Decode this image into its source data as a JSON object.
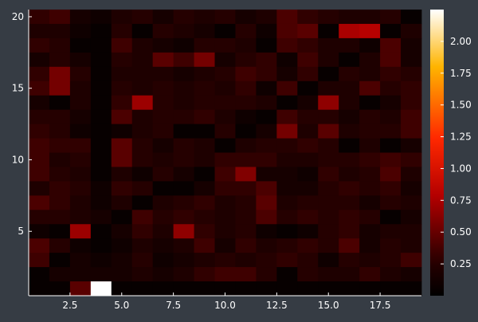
{
  "chart_data": {
    "type": "heatmap",
    "title": "",
    "xlabel": "",
    "ylabel": "",
    "x_range": [
      0.5,
      19.5
    ],
    "y_range": [
      0.5,
      20.5
    ],
    "x_ticks": [
      {
        "value": 2.5,
        "label": "2.5"
      },
      {
        "value": 5.0,
        "label": "5.0"
      },
      {
        "value": 7.5,
        "label": "7.5"
      },
      {
        "value": 10.0,
        "label": "10.0"
      },
      {
        "value": 12.5,
        "label": "12.5"
      },
      {
        "value": 15.0,
        "label": "15.0"
      },
      {
        "value": 17.5,
        "label": "17.5"
      }
    ],
    "y_ticks": [
      {
        "value": 5,
        "label": "5"
      },
      {
        "value": 10,
        "label": "10"
      },
      {
        "value": 15,
        "label": "15"
      },
      {
        "value": 20,
        "label": "20"
      }
    ],
    "colormap": "heat",
    "background_color": "#363c44",
    "colorbar": {
      "range": [
        0.0,
        2.25
      ],
      "ticks": [
        {
          "value": 0.25,
          "label": "0.25"
        },
        {
          "value": 0.5,
          "label": "0.50"
        },
        {
          "value": 0.75,
          "label": "0.75"
        },
        {
          "value": 1.0,
          "label": "1.00"
        },
        {
          "value": 1.25,
          "label": "1.25"
        },
        {
          "value": 1.5,
          "label": "1.50"
        },
        {
          "value": 1.75,
          "label": "1.75"
        },
        {
          "value": 2.0,
          "label": "2.00"
        }
      ]
    },
    "values_note": "rows from top (y=20) to bottom (y=1), columns x=1..19",
    "z": [
      [
        0.3,
        0.35,
        0.15,
        0.1,
        0.2,
        0.25,
        0.15,
        0.25,
        0.2,
        0.25,
        0.15,
        0.2,
        0.4,
        0.3,
        0.25,
        0.2,
        0.2,
        0.25,
        0.05
      ],
      [
        0.2,
        0.2,
        0.1,
        0.05,
        0.25,
        0.05,
        0.25,
        0.2,
        0.15,
        0.05,
        0.25,
        0.1,
        0.4,
        0.45,
        0.05,
        0.75,
        0.8,
        0.05,
        0.2
      ],
      [
        0.3,
        0.25,
        0.05,
        0.05,
        0.35,
        0.2,
        0.15,
        0.1,
        0.25,
        0.25,
        0.2,
        0.05,
        0.35,
        0.3,
        0.2,
        0.2,
        0.1,
        0.4,
        0.15
      ],
      [
        0.15,
        0.25,
        0.15,
        0.05,
        0.25,
        0.2,
        0.45,
        0.35,
        0.55,
        0.15,
        0.25,
        0.3,
        0.1,
        0.35,
        0.2,
        0.05,
        0.2,
        0.4,
        0.15
      ],
      [
        0.3,
        0.55,
        0.25,
        0.05,
        0.2,
        0.2,
        0.2,
        0.15,
        0.2,
        0.25,
        0.35,
        0.3,
        0.15,
        0.3,
        0.05,
        0.25,
        0.2,
        0.3,
        0.25
      ],
      [
        0.35,
        0.55,
        0.2,
        0.05,
        0.25,
        0.2,
        0.25,
        0.2,
        0.25,
        0.2,
        0.3,
        0.1,
        0.35,
        0.05,
        0.2,
        0.2,
        0.4,
        0.25,
        0.3
      ],
      [
        0.15,
        0.05,
        0.2,
        0.05,
        0.3,
        0.7,
        0.25,
        0.2,
        0.25,
        0.25,
        0.25,
        0.2,
        0.05,
        0.15,
        0.65,
        0.2,
        0.05,
        0.15,
        0.3
      ],
      [
        0.25,
        0.25,
        0.15,
        0.05,
        0.4,
        0.2,
        0.25,
        0.25,
        0.3,
        0.2,
        0.1,
        0.05,
        0.35,
        0.25,
        0.25,
        0.15,
        0.25,
        0.2,
        0.35
      ],
      [
        0.3,
        0.25,
        0.1,
        0.05,
        0.1,
        0.2,
        0.25,
        0.05,
        0.05,
        0.25,
        0.05,
        0.15,
        0.55,
        0.2,
        0.45,
        0.2,
        0.25,
        0.25,
        0.35
      ],
      [
        0.35,
        0.3,
        0.3,
        0.05,
        0.45,
        0.25,
        0.15,
        0.25,
        0.2,
        0.05,
        0.2,
        0.25,
        0.25,
        0.3,
        0.25,
        0.05,
        0.2,
        0.05,
        0.15
      ],
      [
        0.35,
        0.2,
        0.25,
        0.05,
        0.45,
        0.25,
        0.2,
        0.25,
        0.2,
        0.3,
        0.3,
        0.3,
        0.2,
        0.2,
        0.25,
        0.25,
        0.3,
        0.35,
        0.3
      ],
      [
        0.35,
        0.25,
        0.2,
        0.05,
        0.2,
        0.1,
        0.25,
        0.15,
        0.05,
        0.35,
        0.6,
        0.15,
        0.15,
        0.1,
        0.3,
        0.2,
        0.25,
        0.4,
        0.2
      ],
      [
        0.2,
        0.3,
        0.25,
        0.1,
        0.3,
        0.25,
        0.05,
        0.05,
        0.15,
        0.3,
        0.3,
        0.4,
        0.15,
        0.15,
        0.25,
        0.3,
        0.25,
        0.3,
        0.15
      ],
      [
        0.4,
        0.3,
        0.2,
        0.1,
        0.2,
        0.05,
        0.2,
        0.25,
        0.3,
        0.2,
        0.25,
        0.45,
        0.2,
        0.25,
        0.25,
        0.25,
        0.15,
        0.25,
        0.2
      ],
      [
        0.25,
        0.25,
        0.2,
        0.15,
        0.05,
        0.35,
        0.25,
        0.3,
        0.25,
        0.2,
        0.25,
        0.4,
        0.25,
        0.3,
        0.25,
        0.3,
        0.25,
        0.05,
        0.15
      ],
      [
        0.1,
        0.05,
        0.7,
        0.05,
        0.15,
        0.3,
        0.2,
        0.65,
        0.3,
        0.2,
        0.25,
        0.1,
        0.05,
        0.1,
        0.25,
        0.3,
        0.15,
        0.2,
        0.2
      ],
      [
        0.4,
        0.25,
        0.1,
        0.05,
        0.1,
        0.2,
        0.15,
        0.2,
        0.35,
        0.15,
        0.3,
        0.2,
        0.25,
        0.3,
        0.25,
        0.4,
        0.15,
        0.25,
        0.2
      ],
      [
        0.35,
        0.05,
        0.15,
        0.1,
        0.15,
        0.25,
        0.1,
        0.15,
        0.2,
        0.25,
        0.2,
        0.25,
        0.3,
        0.25,
        0.1,
        0.25,
        0.2,
        0.25,
        0.35
      ],
      [
        0.05,
        0.15,
        0.15,
        0.15,
        0.15,
        0.2,
        0.15,
        0.2,
        0.3,
        0.35,
        0.35,
        0.25,
        0.05,
        0.25,
        0.2,
        0.2,
        0.3,
        0.2,
        0.15
      ],
      [
        0.05,
        0.05,
        0.45,
        2.25,
        0.05,
        0.05,
        0.05,
        0.05,
        0.05,
        0.05,
        0.05,
        0.05,
        0.05,
        0.05,
        0.05,
        0.05,
        0.05,
        0.05,
        0.05
      ]
    ]
  }
}
